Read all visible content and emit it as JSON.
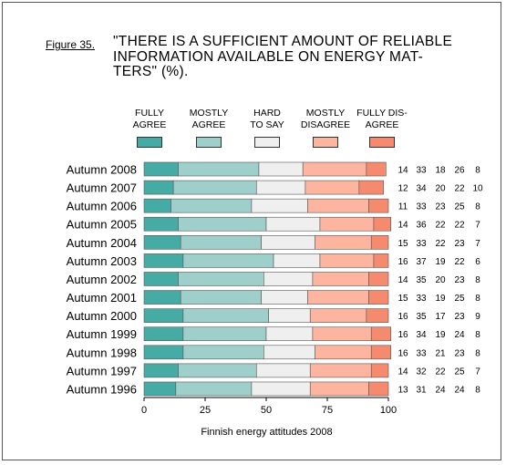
{
  "figure_label": "Figure 35.",
  "title": "\"THERE IS A SUFFICIENT AMOUNT OF RELIABLE\nINFORMATION AVAILABLE ON ENERGY MAT-\nTERS\" (%).",
  "footer": "Finnish energy attitudes 2008",
  "colors": {
    "fully_agree": "#46aaa5",
    "mostly_agree": "#9fcfcb",
    "hard_to_say": "#efefef",
    "mostly_disagree": "#fdb5a0",
    "fully_disagree": "#f58a6e"
  },
  "legend": [
    {
      "label": "FULLY\nAGREE",
      "color": "#46aaa5"
    },
    {
      "label": "MOSTLY\nAGREE",
      "color": "#9fcfcb"
    },
    {
      "label": "HARD\nTO SAY",
      "color": "#efefef"
    },
    {
      "label": "MOSTLY\nDISAGREE",
      "color": "#fdb5a0"
    },
    {
      "label": "FULLY DIS-\nAGREE",
      "color": "#f58a6e"
    }
  ],
  "chart_data": {
    "type": "bar",
    "orientation": "horizontal",
    "stacked": true,
    "xlim": [
      0,
      100
    ],
    "xticks": [
      0,
      25,
      50,
      75,
      100
    ],
    "categories": [
      "Autumn 2008",
      "Autumn 2007",
      "Autumn 2006",
      "Autumn 2005",
      "Autumn 2004",
      "Autumn 2003",
      "Autumn 2002",
      "Autumn 2001",
      "Autumn 2000",
      "Autumn 1999",
      "Autumn 1998",
      "Autumn 1997",
      "Autumn 1996"
    ],
    "series": [
      {
        "name": "FULLY AGREE",
        "values": [
          14,
          12,
          11,
          14,
          15,
          16,
          14,
          15,
          16,
          16,
          16,
          14,
          13
        ]
      },
      {
        "name": "MOSTLY AGREE",
        "values": [
          33,
          34,
          33,
          36,
          33,
          37,
          35,
          33,
          35,
          34,
          33,
          32,
          31
        ]
      },
      {
        "name": "HARD TO SAY",
        "values": [
          18,
          20,
          23,
          22,
          22,
          19,
          20,
          19,
          17,
          19,
          21,
          22,
          24
        ]
      },
      {
        "name": "MOSTLY DISAGREE",
        "values": [
          26,
          22,
          25,
          22,
          23,
          22,
          23,
          25,
          23,
          24,
          23,
          25,
          24
        ]
      },
      {
        "name": "FULLY DISAGREE",
        "values": [
          8,
          10,
          8,
          7,
          7,
          6,
          8,
          8,
          9,
          8,
          8,
          7,
          8
        ]
      }
    ],
    "legend_position": "top",
    "grid": false,
    "xlabel": "",
    "ylabel": ""
  }
}
